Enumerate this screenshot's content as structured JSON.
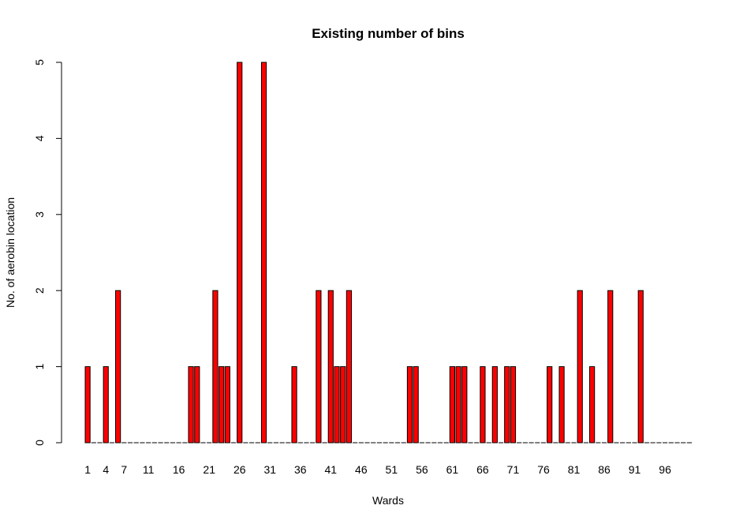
{
  "chart_data": {
    "type": "bar",
    "title": "Existing number of bins",
    "xlabel": "Wards",
    "ylabel": "No. of aerobin location",
    "ylim": [
      0,
      5
    ],
    "yticks": [
      "0",
      "1",
      "2",
      "3",
      "4",
      "5"
    ],
    "bar_color": "#ff0000",
    "categories": [
      "1",
      "2",
      "3",
      "4",
      "5",
      "6",
      "7",
      "8",
      "9",
      "10",
      "11",
      "12",
      "13",
      "14",
      "15",
      "16",
      "17",
      "18",
      "19",
      "20",
      "21",
      "22",
      "23",
      "24",
      "25",
      "26",
      "27",
      "28",
      "29",
      "30",
      "31",
      "32",
      "33",
      "34",
      "35",
      "36",
      "37",
      "38",
      "39",
      "40",
      "41",
      "42",
      "43",
      "44",
      "45",
      "46",
      "47",
      "48",
      "49",
      "50",
      "51",
      "52",
      "53",
      "54",
      "55",
      "56",
      "57",
      "58",
      "59",
      "60",
      "61",
      "62",
      "63",
      "64",
      "65",
      "66",
      "67",
      "68",
      "69",
      "70",
      "71",
      "72",
      "73",
      "74",
      "75",
      "76",
      "77",
      "78",
      "79",
      "80",
      "81",
      "82",
      "83",
      "84",
      "85",
      "86",
      "87",
      "88",
      "89",
      "90",
      "91",
      "92",
      "93",
      "94",
      "95",
      "96",
      "97",
      "98",
      "99",
      "100"
    ],
    "tick_labels": [
      "1",
      "4",
      "7",
      "11",
      "16",
      "21",
      "26",
      "31",
      "36",
      "41",
      "46",
      "51",
      "56",
      "61",
      "66",
      "71",
      "76",
      "81",
      "86",
      "91",
      "96"
    ],
    "values": [
      1,
      0,
      0,
      1,
      0,
      2,
      0,
      0,
      0,
      0,
      0,
      0,
      0,
      0,
      0,
      0,
      0,
      1,
      1,
      0,
      0,
      2,
      1,
      1,
      0,
      5,
      0,
      0,
      0,
      5,
      0,
      0,
      0,
      0,
      1,
      0,
      0,
      0,
      2,
      0,
      2,
      1,
      1,
      2,
      0,
      0,
      0,
      0,
      0,
      0,
      0,
      0,
      0,
      1,
      1,
      0,
      0,
      0,
      0,
      0,
      1,
      1,
      1,
      0,
      0,
      1,
      0,
      1,
      0,
      1,
      1,
      0,
      0,
      0,
      0,
      0,
      1,
      0,
      1,
      0,
      0,
      2,
      0,
      1,
      0,
      0,
      2,
      0,
      0,
      0,
      0,
      2,
      0,
      0,
      0,
      0,
      0,
      0,
      0,
      0
    ]
  }
}
